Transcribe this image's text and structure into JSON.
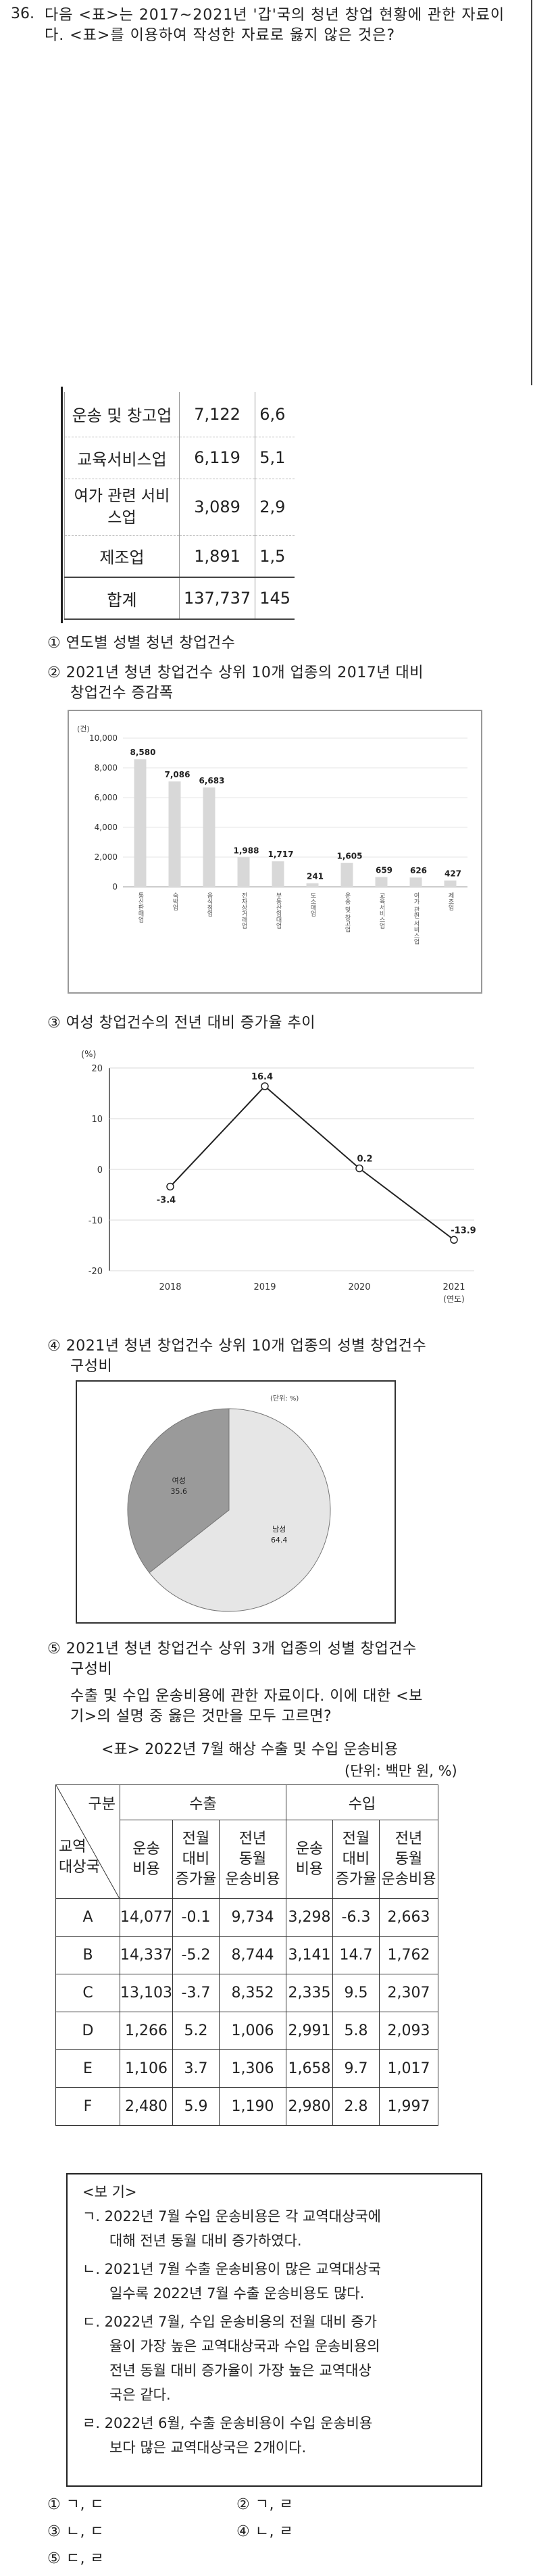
{
  "question": {
    "number": "36.",
    "text": "다음 <표>는 2017~2021년 '갑'국의 청년 창업 현황에 관한 자료이다. <표>를 이용하여 작성한 자료로 옳지 않은 것은?"
  },
  "table1": {
    "rows": [
      {
        "label": "운송 및 창고업",
        "v1": "7,122",
        "v2": "6,6"
      },
      {
        "label": "교육서비스업",
        "v1": "6,119",
        "v2": "5,1"
      },
      {
        "label": "여가 관련 서비스업",
        "v1": "3,089",
        "v2": "2,9"
      },
      {
        "label": "제조업",
        "v1": "1,891",
        "v2": "1,5"
      },
      {
        "label": "합계",
        "v1": "137,737",
        "v2": "145"
      }
    ]
  },
  "options": {
    "o1": "① 연도별 성별 청년 창업건수",
    "o2_line1": "② 2021년 청년 창업건수 상위 10개 업종의 2017년 대비",
    "o2_line2": "창업건수 증감폭",
    "o3": "③ 여성 창업건수의 전년 대비 증가율 추이",
    "o4_line1": "④ 2021년 청년 창업건수 상위 10개 업종의 성별 창업건수",
    "o4_line2": "구성비",
    "o5_line1": "⑤ 2021년 청년 창업건수 상위 3개 업종의 성별 창업건수",
    "o5_line2": "구성비"
  },
  "chart_data": [
    {
      "type": "bar",
      "unit_label": "(건)",
      "categories": [
        "통신판매업",
        "숙박업",
        "음식점업",
        "전자상거래업",
        "부동산임대업",
        "도소매업",
        "운송 및 창고업",
        "교육서비스업",
        "여가 관련 서비스업",
        "제조업"
      ],
      "values": [
        8580,
        7086,
        6683,
        1988,
        1717,
        241,
        1605,
        659,
        626,
        427
      ],
      "value_labels": [
        "8,580",
        "7,086",
        "6,683",
        "1,988",
        "1,717",
        "241",
        "1,605",
        "659",
        "626",
        "427"
      ],
      "yticks": [
        "0",
        "2,000",
        "4,000",
        "6,000",
        "8,000",
        "10,000"
      ],
      "ylim": [
        0,
        10000
      ]
    },
    {
      "type": "line",
      "unit_label": "(%)",
      "x": [
        "2018",
        "2019",
        "2020",
        "2021"
      ],
      "values": [
        -3.4,
        16.4,
        0.2,
        -13.9
      ],
      "value_labels": [
        "-3.4",
        "16.4",
        "0.2",
        "-13.9"
      ],
      "yticks": [
        "20",
        "10",
        "0",
        "-10",
        "-20"
      ],
      "ylim": [
        -20,
        20
      ],
      "x_unit": "(연도)"
    },
    {
      "type": "pie",
      "unit_label": "(단위: %)",
      "slices": [
        {
          "name": "남성",
          "value": 64.4,
          "color": "#e6e6e6"
        },
        {
          "name": "여성",
          "value": 35.6,
          "color": "#9a9a9a"
        }
      ]
    }
  ],
  "passage2": {
    "line1": "수출 및 수입 운송비용에 관한 자료이다. 이에 대한 <보",
    "line2": "기>의 설명 중 옳은 것만을 모두 고르면?"
  },
  "table2": {
    "caption": "<표> 2022년 7월 해상 수출 및 수입 운송비용",
    "unit": "(단위: 백만 원, %)",
    "corner_top": "구분",
    "corner_bottom": "교역\n대상국",
    "group_export": "수출",
    "group_import": "수입",
    "col_cost": "운송\n비용",
    "col_mom": "전월\n대비\n증가율",
    "col_yoy": "전년\n동월\n운송비용",
    "rows": [
      {
        "c": "A",
        "e1": "14,077",
        "e2": "-0.1",
        "e3": "9,734",
        "i1": "3,298",
        "i2": "-6.3",
        "i3": "2,663"
      },
      {
        "c": "B",
        "e1": "14,337",
        "e2": "-5.2",
        "e3": "8,744",
        "i1": "3,141",
        "i2": "14.7",
        "i3": "1,762"
      },
      {
        "c": "C",
        "e1": "13,103",
        "e2": "-3.7",
        "e3": "8,352",
        "i1": "2,335",
        "i2": "9.5",
        "i3": "2,307"
      },
      {
        "c": "D",
        "e1": "1,266",
        "e2": "5.2",
        "e3": "1,006",
        "i1": "2,991",
        "i2": "5.8",
        "i3": "2,093"
      },
      {
        "c": "E",
        "e1": "1,106",
        "e2": "3.7",
        "e3": "1,306",
        "i1": "1,658",
        "i2": "9.7",
        "i3": "1,017"
      },
      {
        "c": "F",
        "e1": "2,480",
        "e2": "5.9",
        "e3": "1,190",
        "i1": "2,980",
        "i2": "2.8",
        "i3": "1,997"
      }
    ]
  },
  "bogi": {
    "title": "<보 기>",
    "items": [
      "ㄱ. 2022년 7월 수입 운송비용은 각 교역대상국에",
      "대해 전년 동월 대비 증가하였다.",
      "ㄴ. 2021년 7월 수출 운송비용이 많은 교역대상국",
      "일수록 2022년 7월 수출 운송비용도 많다.",
      "ㄷ. 2022년 7월, 수입 운송비용의 전월 대비 증가",
      "율이 가장 높은 교역대상국과 수입 운송비용의",
      "전년 동월 대비 증가율이 가장 높은 교역대상",
      "국은 같다.",
      "ㄹ. 2022년 6월, 수출 운송비용이 수입 운송비용",
      "보다 많은 교역대상국은 2개이다."
    ]
  },
  "answers": {
    "a1": "① ㄱ, ㄷ",
    "a2": "② ㄱ, ㄹ",
    "a3": "③ ㄴ, ㄷ",
    "a4": "④ ㄴ, ㄹ",
    "a5": "⑤ ㄷ, ㄹ"
  }
}
